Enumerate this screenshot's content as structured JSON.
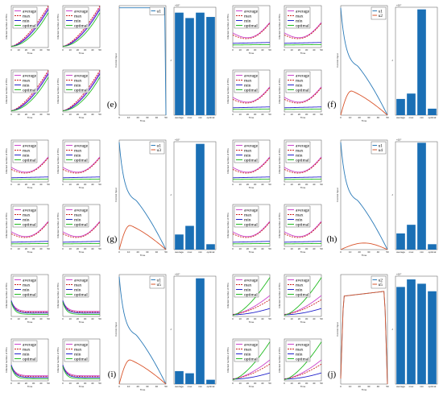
{
  "figure": {
    "legend_entries": [
      "average",
      "max",
      "min",
      "optimal"
    ],
    "policy_labels": [
      "average",
      "max",
      "min",
      "optimal"
    ],
    "y_axis_label": "Infected number of PCs",
    "x_axis_label": "Time",
    "control_y_label": "Control Input",
    "bar_y_label": "J",
    "bar_exponent": "×10⁴",
    "colors": {
      "average": "#cc44cc",
      "max": "#cc2222",
      "min": "#2222cc",
      "optimal": "#22bb22",
      "bar": "#1a6fb5",
      "c1": "#2a7ab8",
      "c2": "#d9542b"
    }
  },
  "chart_data": [
    {
      "panel": "(e)",
      "type": "composite",
      "infection_curve": "rise",
      "controls": [
        {
          "name": "u1",
          "shape": "flat_drop"
        }
      ],
      "bar": {
        "type": "bar",
        "categories": [
          "average",
          "max",
          "min",
          "optimal"
        ],
        "values": [
          0.95,
          0.9,
          0.95,
          0.91
        ]
      }
    },
    {
      "panel": "(f)",
      "type": "composite",
      "infection_curve": "u_shape",
      "controls": [
        {
          "name": "u1",
          "shape": "s_decline"
        },
        {
          "name": "u2",
          "shape": "hump"
        }
      ],
      "bar": {
        "type": "bar",
        "categories": [
          "average",
          "max",
          "min",
          "optimal"
        ],
        "values": [
          0.15,
          0.2,
          0.98,
          0.06
        ]
      }
    },
    {
      "panel": "(g)",
      "type": "composite",
      "infection_curve": "u_shape",
      "controls": [
        {
          "name": "u1",
          "shape": "s_decline"
        },
        {
          "name": "u3",
          "shape": "hump"
        }
      ],
      "bar": {
        "type": "bar",
        "categories": [
          "average",
          "max",
          "min",
          "optimal"
        ],
        "values": [
          0.14,
          0.22,
          0.98,
          0.05
        ]
      }
    },
    {
      "panel": "(h)",
      "type": "composite",
      "infection_curve": "u_shape",
      "controls": [
        {
          "name": "u1",
          "shape": "s_decline"
        },
        {
          "name": "u4",
          "shape": "hump_low"
        }
      ],
      "bar": {
        "type": "bar",
        "categories": [
          "average",
          "max",
          "min",
          "optimal"
        ],
        "values": [
          0.15,
          0.23,
          0.99,
          0.05
        ]
      }
    },
    {
      "panel": "(i)",
      "type": "composite",
      "infection_curve": "decay",
      "controls": [
        {
          "name": "u1",
          "shape": "s_decline"
        },
        {
          "name": "u5",
          "shape": "hump"
        }
      ],
      "bar": {
        "type": "bar",
        "categories": [
          "average",
          "max",
          "min",
          "optimal"
        ],
        "values": [
          0.12,
          0.1,
          0.98,
          0.04
        ]
      }
    },
    {
      "panel": "(j)",
      "type": "composite",
      "infection_curve": "spread",
      "controls": [
        {
          "name": "u2",
          "shape": "plateau"
        },
        {
          "name": "u5",
          "shape": "plateau"
        }
      ],
      "bar": {
        "type": "bar",
        "categories": [
          "average",
          "max",
          "min",
          "optimal"
        ],
        "values": [
          0.9,
          0.97,
          0.93,
          0.86
        ]
      }
    }
  ]
}
